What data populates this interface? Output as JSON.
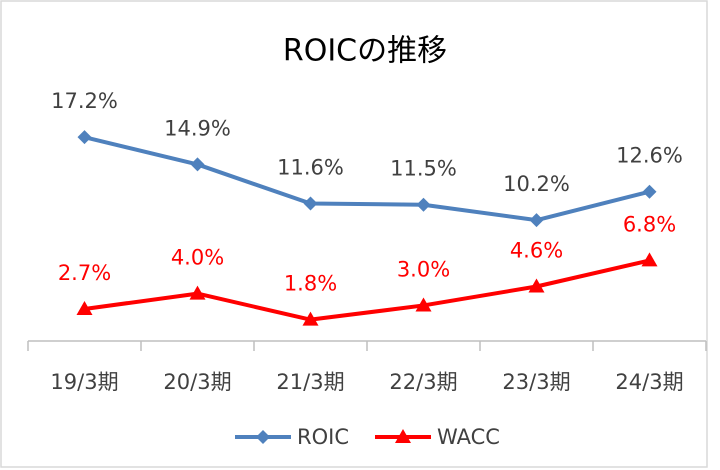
{
  "chart_data": {
    "type": "line",
    "title": "ROICの推移",
    "categories": [
      "19/3期",
      "20/3期",
      "21/3期",
      "22/3期",
      "23/3期",
      "24/3期"
    ],
    "series": [
      {
        "name": "ROIC",
        "color": "#4f81bd",
        "marker": "diamond",
        "label_color": "#404040",
        "values": [
          17.2,
          14.9,
          11.6,
          11.5,
          10.2,
          12.6
        ],
        "value_labels": [
          "17.2%",
          "14.9%",
          "11.6%",
          "11.5%",
          "10.2%",
          "12.6%"
        ]
      },
      {
        "name": "WACC",
        "color": "#ff0000",
        "marker": "triangle",
        "label_color": "#ff0000",
        "values": [
          2.7,
          4.0,
          1.8,
          3.0,
          4.6,
          6.8
        ],
        "value_labels": [
          "2.7%",
          "4.0%",
          "1.8%",
          "3.0%",
          "4.6%",
          "6.8%"
        ]
      }
    ],
    "ylim": [
      0,
      20
    ],
    "legend": "bottom"
  }
}
